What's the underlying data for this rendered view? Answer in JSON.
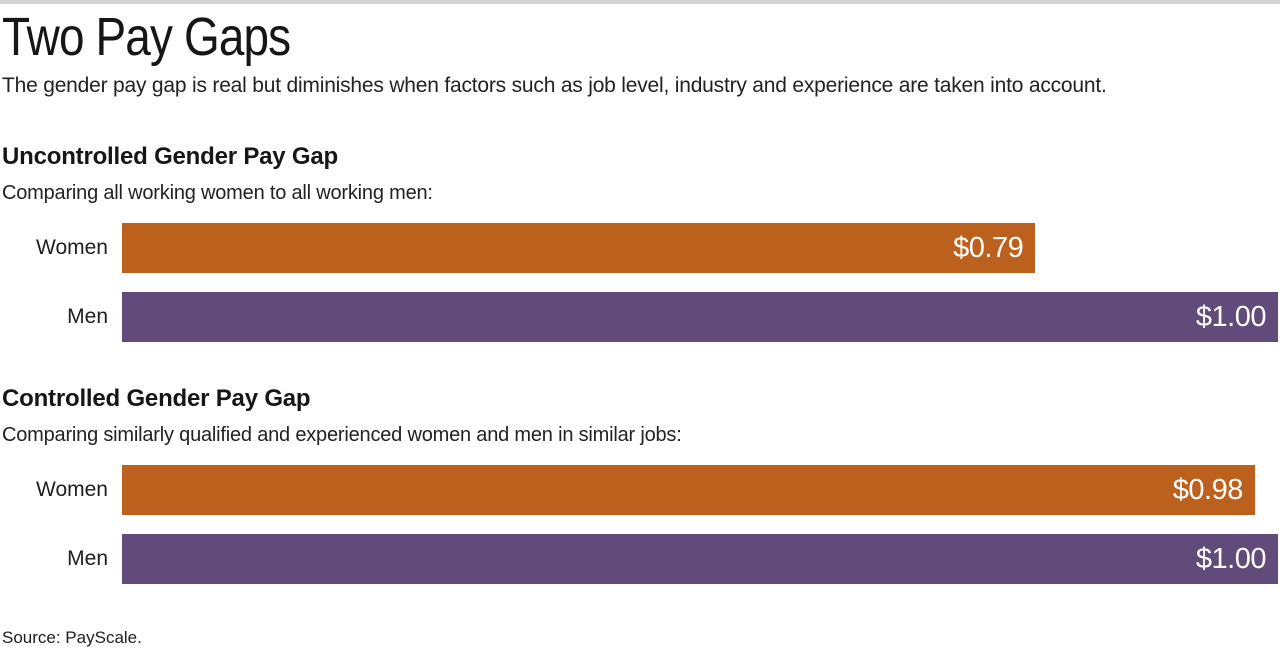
{
  "page": {
    "title": "Two Pay Gaps",
    "subtitle": "The gender pay gap is real but diminishes when factors such as job level, industry and experience are taken into account.",
    "source": "Source: PayScale."
  },
  "colors": {
    "women_bar": "#bc611d",
    "men_bar": "#604b7a",
    "top_rule": "#d4d4d4",
    "text": "#1e1e1e"
  },
  "chart_data": [
    {
      "type": "bar",
      "orientation": "horizontal",
      "title": "Uncontrolled Gender Pay Gap",
      "subtitle": "Comparing all working women to all working men:",
      "categories": [
        "Women",
        "Men"
      ],
      "values": [
        0.79,
        1.0
      ],
      "value_labels": [
        "$0.79",
        "$1.00"
      ],
      "xlim": [
        0,
        1.0
      ],
      "grid": false,
      "legend": "none",
      "series_colors": [
        "#bc611d",
        "#604b7a"
      ]
    },
    {
      "type": "bar",
      "orientation": "horizontal",
      "title": "Controlled Gender Pay Gap",
      "subtitle": "Comparing similarly qualified and experienced women and men in similar jobs:",
      "categories": [
        "Women",
        "Men"
      ],
      "values": [
        0.98,
        1.0
      ],
      "value_labels": [
        "$0.98",
        "$1.00"
      ],
      "xlim": [
        0,
        1.0
      ],
      "grid": false,
      "legend": "none",
      "series_colors": [
        "#bc611d",
        "#604b7a"
      ]
    }
  ]
}
